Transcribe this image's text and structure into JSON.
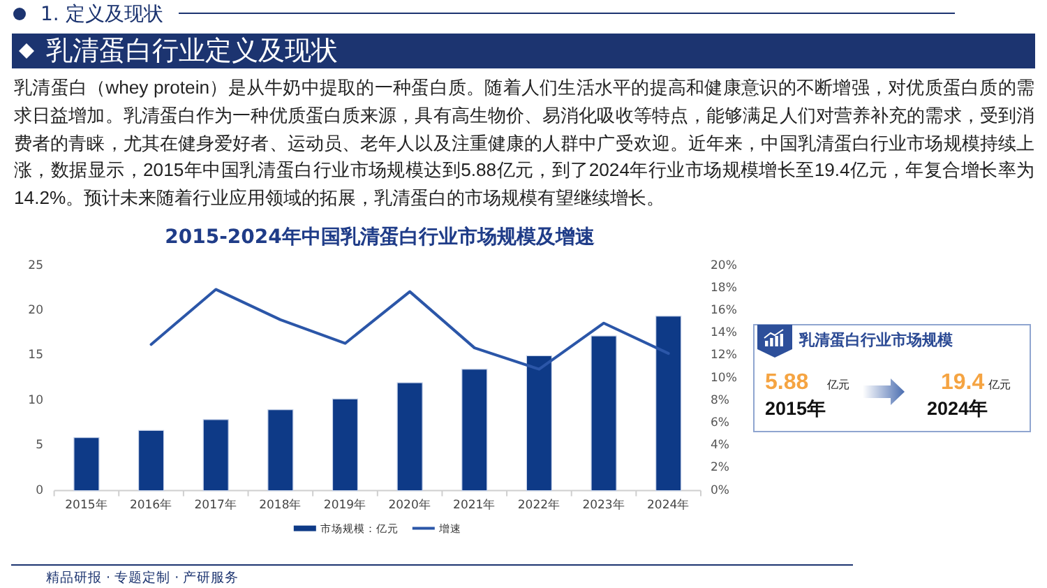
{
  "chart_data": [
    {
      "type": "other",
      "title": "乳清蛋白行业定义及现状",
      "subtitle": "乳清蛋白（whey protein）是从牛奶中提取的一种蛋白质。随着人们生活水平的提高和健康意识的不断增强，对优质蛋白质的需求日益增加。乳清蛋白作为一种优质蛋白质来源，具有高生物价、易消化吸收等特点，能够满足人们对营养补充的需求，受到消费者的青睐，尤其在健身爱好者、运动员、老年人以及注重健康的人群中广受欢迎。近年来，中国乳清蛋白行业市场规模持续上涨，数据显示，2015年中国乳清蛋白行业市场规模达到5.88亿元，到了2024年行业市场规模增长至19.4亿元，年复合增长率为14.2%。预计未来随着行业应用领域的拓展，乳清蛋白的市场规模有望继续增长。",
      "annotations": [
        "1. 定义及现状",
        "精品研报 · 专题定制 · 产研服务"
      ]
    },
    {
      "type": "bar",
      "title": "2015-2024年中国乳清蛋白行业市场规模及增速",
      "categories": [
        "2015年",
        "2016年",
        "2017年",
        "2018年",
        "2019年",
        "2020年",
        "2021年",
        "2022年",
        "2023年",
        "2024年"
      ],
      "series": [
        {
          "name": "市场规模：亿元",
          "type": "bar",
          "color": "#0e3a87",
          "values": [
            5.9,
            6.7,
            7.9,
            9.0,
            10.2,
            12.0,
            13.5,
            15.0,
            17.2,
            19.4
          ]
        },
        {
          "name": "增速",
          "type": "line",
          "axis": "y2",
          "color": "#2b56a8",
          "values": [
            null,
            13.0,
            17.9,
            15.2,
            13.1,
            17.7,
            12.7,
            10.8,
            14.9,
            12.2
          ]
        }
      ],
      "ylim": [
        0,
        25
      ],
      "yticks": [
        0,
        5,
        10,
        15,
        20,
        25
      ],
      "y2lim": [
        0,
        20
      ],
      "y2ticks": [
        {
          "value": 0,
          "label": "0%"
        },
        {
          "value": 2,
          "label": "2%"
        },
        {
          "value": 4,
          "label": "4%"
        },
        {
          "value": 6,
          "label": "6%"
        },
        {
          "value": 8,
          "label": "8%"
        },
        {
          "value": 10,
          "label": "10%"
        },
        {
          "value": 12,
          "label": "12%"
        },
        {
          "value": 14,
          "label": "14%"
        },
        {
          "value": 16,
          "label": "16%"
        },
        {
          "value": 18,
          "label": "18%"
        },
        {
          "value": 20,
          "label": "20%"
        }
      ],
      "legend": "bottom"
    },
    {
      "type": "other",
      "title": "乳清蛋白行业市场规模",
      "annotations": [
        "5.88",
        "亿元",
        "2015年",
        "19.4",
        "亿元",
        "2024年"
      ]
    }
  ]
}
